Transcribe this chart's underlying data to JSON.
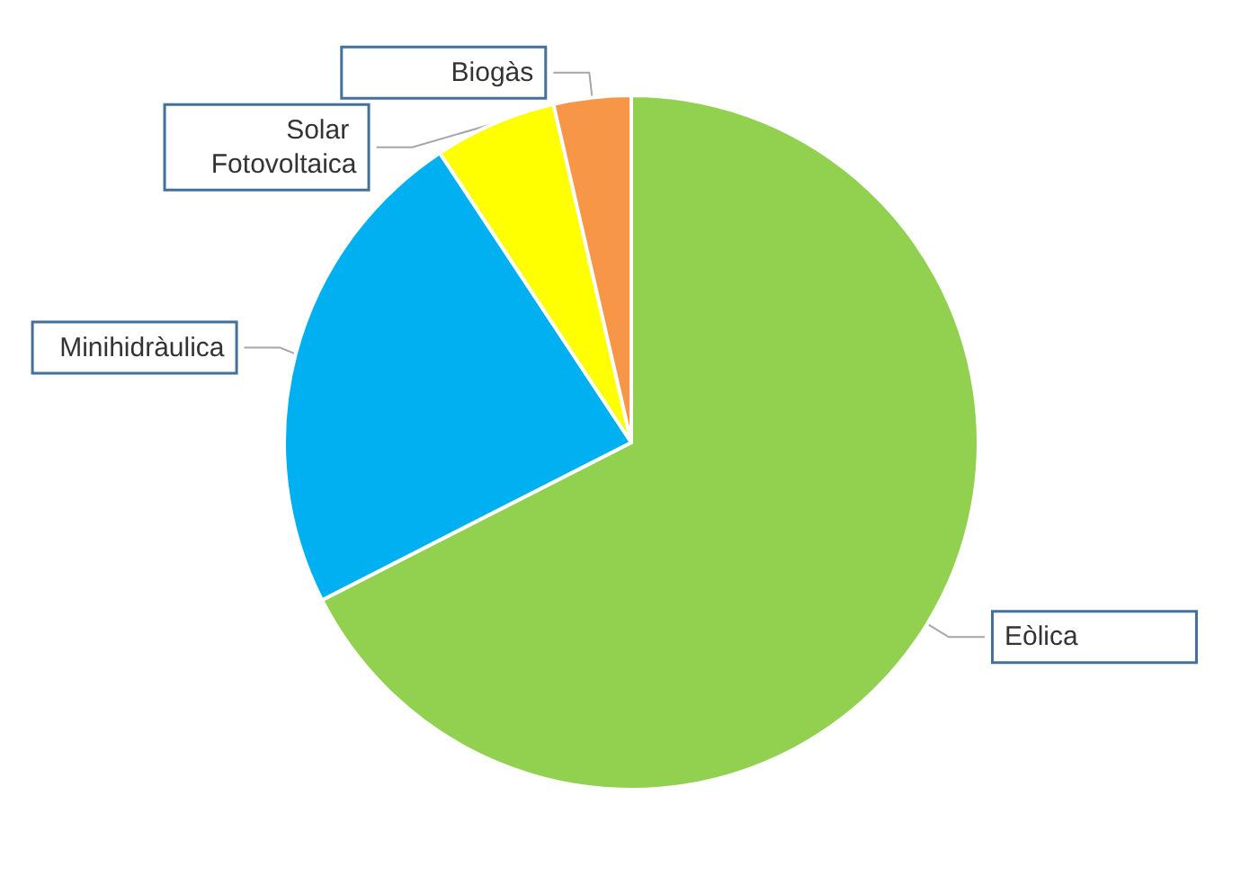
{
  "chart_data": {
    "type": "pie",
    "categories": [
      "Eòlica",
      "Minihidràulica",
      "Solar Fotovoltaica",
      "Biogàs"
    ],
    "values": [
      67.5,
      23.2,
      5.7,
      3.6
    ],
    "colors": [
      "#92d050",
      "#00b0f0",
      "#ffff00",
      "#f79646"
    ],
    "legend": false
  }
}
